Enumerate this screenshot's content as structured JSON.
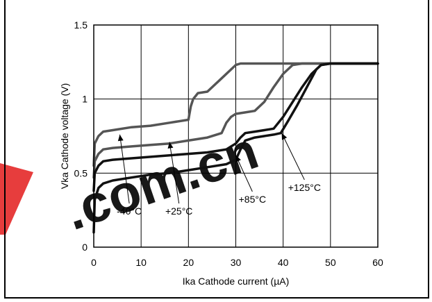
{
  "chart_data": {
    "type": "line",
    "title": "",
    "xlabel": "Ika Cathode current (µA)",
    "ylabel": "Vka Cathode voltage (V)",
    "xlim": [
      0,
      60
    ],
    "ylim": [
      0,
      1.5
    ],
    "xticks": [
      "0",
      "10",
      "20",
      "30",
      "40",
      "50",
      "60"
    ],
    "yticks": [
      "0",
      "0.5",
      "1",
      "1.5"
    ],
    "xtick_values": [
      0,
      10,
      20,
      30,
      40,
      50,
      60
    ],
    "ytick_values": [
      0,
      0.5,
      1,
      1.5
    ],
    "grid": true,
    "watermark_text": ".com.cn",
    "series": [
      {
        "name": "-40°C",
        "color": "#555555",
        "x": [
          0,
          0.2,
          1,
          2,
          4,
          8,
          12,
          16,
          20,
          20.5,
          21,
          21.5,
          22,
          24,
          25,
          27,
          29,
          30,
          31,
          35,
          40,
          50,
          60
        ],
        "y": [
          0.55,
          0.7,
          0.75,
          0.78,
          0.79,
          0.81,
          0.82,
          0.84,
          0.86,
          0.95,
          1.0,
          1.02,
          1.04,
          1.05,
          1.08,
          1.14,
          1.2,
          1.23,
          1.24,
          1.24,
          1.24,
          1.24,
          1.24
        ]
      },
      {
        "name": "+25°C",
        "color": "#555555",
        "x": [
          0,
          0.2,
          1,
          2,
          4,
          8,
          12,
          16,
          20,
          24,
          27,
          28,
          29,
          30,
          32,
          34,
          36,
          38,
          40,
          42,
          44,
          50,
          60
        ],
        "y": [
          0.47,
          0.58,
          0.63,
          0.66,
          0.67,
          0.68,
          0.69,
          0.7,
          0.72,
          0.74,
          0.77,
          0.84,
          0.88,
          0.9,
          0.91,
          0.92,
          0.98,
          1.08,
          1.17,
          1.23,
          1.24,
          1.24,
          1.24
        ]
      },
      {
        "name": "+85°C",
        "color": "#111111",
        "x": [
          0,
          0.2,
          1,
          2,
          4,
          8,
          12,
          16,
          20,
          24,
          28,
          30,
          31,
          32,
          34,
          36,
          38,
          40,
          42,
          44,
          46,
          48,
          50,
          60
        ],
        "y": [
          0.38,
          0.5,
          0.55,
          0.58,
          0.59,
          0.6,
          0.61,
          0.62,
          0.63,
          0.64,
          0.66,
          0.7,
          0.74,
          0.77,
          0.78,
          0.79,
          0.8,
          0.88,
          0.98,
          1.08,
          1.17,
          1.23,
          1.24,
          1.24
        ]
      },
      {
        "name": "+125°C",
        "color": "#111111",
        "x": [
          0,
          0.2,
          1,
          2,
          4,
          8,
          12,
          16,
          20,
          24,
          28,
          30,
          31,
          32,
          34,
          36,
          38,
          39.5,
          41,
          43,
          45,
          47,
          48,
          50,
          60
        ],
        "y": [
          0.1,
          0.32,
          0.4,
          0.43,
          0.45,
          0.47,
          0.49,
          0.5,
          0.52,
          0.54,
          0.56,
          0.59,
          0.66,
          0.72,
          0.74,
          0.75,
          0.76,
          0.77,
          0.85,
          0.96,
          1.08,
          1.2,
          1.23,
          1.24,
          1.24
        ]
      }
    ],
    "annotations": [
      {
        "text": "-40°C",
        "arrow_to": [
          5.5,
          0.76
        ],
        "label_at": [
          7.5,
          0.22
        ]
      },
      {
        "text": "+25°C",
        "arrow_to": [
          16.0,
          0.71
        ],
        "label_at": [
          18.0,
          0.22
        ]
      },
      {
        "text": "+85°C",
        "arrow_to": [
          30.0,
          0.62
        ],
        "label_at": [
          33.5,
          0.3
        ]
      },
      {
        "text": "+125°C",
        "arrow_to": [
          39.7,
          0.77
        ],
        "label_at": [
          44.5,
          0.38
        ]
      }
    ]
  }
}
